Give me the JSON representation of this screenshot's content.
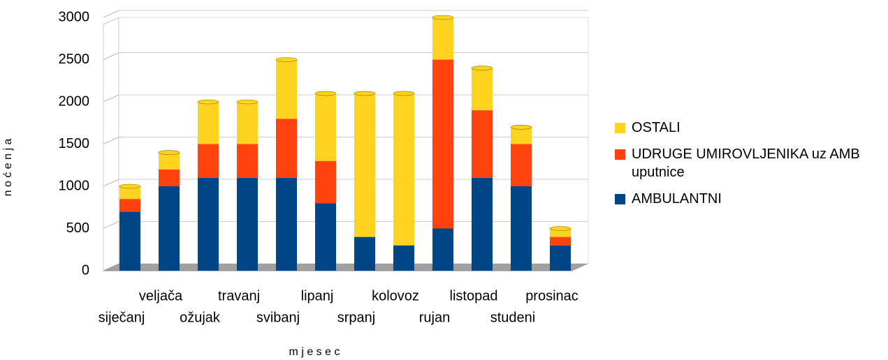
{
  "chart_data": {
    "type": "stacked-bar",
    "y_axis_label": "n o ć e n j a",
    "x_axis_label": "m j e s e c",
    "categories": [
      "siječanj",
      "veljača",
      "ožujak",
      "travanj",
      "svibanj",
      "lipanj",
      "srpanj",
      "kolovoz",
      "rujan",
      "listopad",
      "studeni",
      "prosinac"
    ],
    "series": [
      {
        "name": "AMBULANTNI",
        "color": "#004586",
        "values": [
          700,
          1000,
          1100,
          1100,
          1100,
          800,
          400,
          300,
          500,
          1100,
          1000,
          300
        ]
      },
      {
        "name": "UDRUGE UMIROVLJENIKA uz AMB uputnice",
        "color": "#ff420e",
        "values": [
          150,
          200,
          400,
          400,
          700,
          500,
          0,
          0,
          2000,
          800,
          500,
          100
        ]
      },
      {
        "name": "OSTALI",
        "color": "#ffd320",
        "values": [
          150,
          200,
          500,
          500,
          700,
          800,
          1700,
          1800,
          500,
          500,
          200,
          100
        ]
      }
    ],
    "ylim": [
      0,
      3000
    ],
    "yticks": [
      0,
      500,
      1000,
      1500,
      2000,
      2500,
      3000
    ],
    "grid": true,
    "legend": "right"
  }
}
